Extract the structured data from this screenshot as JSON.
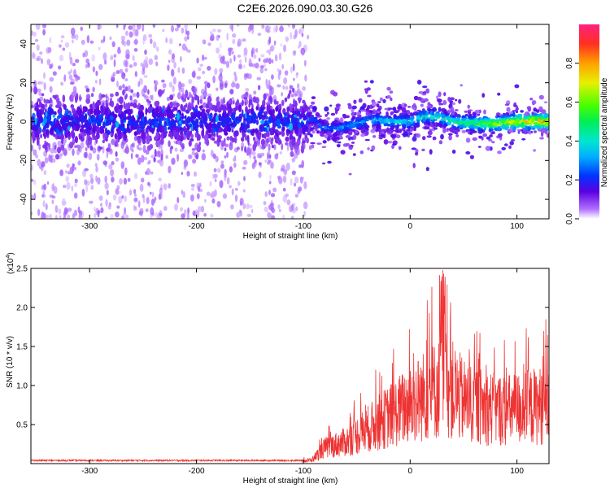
{
  "title": "C2E6.2026.090.03.30.G26",
  "chart_data": [
    {
      "type": "heatmap",
      "name": "spectrogram",
      "xlabel": "Height of straight line (km)",
      "ylabel": "Frequency (Hz)",
      "xlim": [
        -355,
        130
      ],
      "ylim": [
        -50,
        50
      ],
      "xticks": [
        -300,
        -200,
        -100,
        0,
        100
      ],
      "xtick_labels": [
        "-300",
        "-200",
        "-100",
        "0",
        "100"
      ],
      "yticks": [
        40,
        20,
        0,
        -20,
        -40
      ],
      "ytick_labels": [
        "40",
        "20",
        "0",
        "-20",
        "-40"
      ],
      "noise_region_end_km": -95,
      "ridge": [
        {
          "x": -90,
          "y": 1
        },
        {
          "x": -82,
          "y": -3
        },
        {
          "x": -70,
          "y": -4
        },
        {
          "x": -50,
          "y": -1
        },
        {
          "x": -35,
          "y": 1
        },
        {
          "x": -20,
          "y": 0
        },
        {
          "x": 0,
          "y": 0
        },
        {
          "x": 15,
          "y": 3
        },
        {
          "x": 28,
          "y": 2
        },
        {
          "x": 40,
          "y": 0
        },
        {
          "x": 60,
          "y": -1
        },
        {
          "x": 80,
          "y": -1
        },
        {
          "x": 100,
          "y": 0
        },
        {
          "x": 130,
          "y": 0
        }
      ],
      "colorbar": {
        "label": "Normalized spectral amplitude",
        "range": [
          0,
          1
        ],
        "ticks": [
          0.0,
          0.2,
          0.4,
          0.6,
          0.8
        ],
        "tick_labels": [
          "0.0",
          "0.2",
          "0.4",
          "0.6",
          "0.8"
        ]
      }
    },
    {
      "type": "line",
      "name": "snr",
      "xlabel": "Height of straight line (km)",
      "ylabel": "SNR (10 * v/v)",
      "exponent_label": "(x10",
      "exponent_power": "4",
      "exponent_close": ")",
      "xlim": [
        -355,
        130
      ],
      "ylim": [
        0,
        2.5
      ],
      "xticks": [
        -300,
        -200,
        -100,
        0,
        100
      ],
      "xtick_labels": [
        "-300",
        "-200",
        "-100",
        "0",
        "100"
      ],
      "yticks": [
        0.5,
        1.0,
        1.5,
        2.0,
        2.5
      ],
      "ytick_labels": [
        "0.5",
        "1.0",
        "1.5",
        "2.0",
        "2.5"
      ],
      "color": "#ee3333",
      "envelope": [
        {
          "x": -355,
          "y": 0.04
        },
        {
          "x": -100,
          "y": 0.04
        },
        {
          "x": -92,
          "y": 0.06
        },
        {
          "x": -80,
          "y": 0.25
        },
        {
          "x": -60,
          "y": 0.35
        },
        {
          "x": -40,
          "y": 0.55
        },
        {
          "x": -20,
          "y": 0.75
        },
        {
          "x": 0,
          "y": 0.95
        },
        {
          "x": 20,
          "y": 1.15
        },
        {
          "x": 35,
          "y": 1.25
        },
        {
          "x": 50,
          "y": 1.0
        },
        {
          "x": 70,
          "y": 0.9
        },
        {
          "x": 90,
          "y": 0.85
        },
        {
          "x": 110,
          "y": 0.9
        },
        {
          "x": 130,
          "y": 0.95
        }
      ],
      "peak": {
        "x": 30,
        "y": 2.5
      }
    }
  ]
}
